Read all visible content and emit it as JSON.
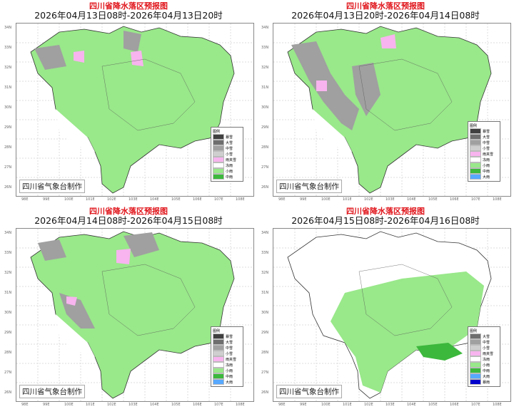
{
  "main_title": "四川省降水落区预报图",
  "credit": "四川省气象台制作",
  "lon_ticks": [
    "98E",
    "99E",
    "100E",
    "101E",
    "102E",
    "103E",
    "104E",
    "105E",
    "106E",
    "107E",
    "108E"
  ],
  "lat_ticks": [
    "34N",
    "33N",
    "32N",
    "31N",
    "30N",
    "29N",
    "28N",
    "27N",
    "26N"
  ],
  "colors": {
    "暴雪": "#404040",
    "大雪": "#6e6e6e",
    "中雪": "#a0a0a0",
    "小雪": "#cfcfcf",
    "雨夹雪": "#f7b4ee",
    "冻雨": "#ffffff",
    "小雨": "#99e88a",
    "中雨": "#3cb83c",
    "大雨": "#57a8ff",
    "暴雨": "#0000cc"
  },
  "panels": [
    {
      "title": "2026年04月13日08时-2026年04月13日20时",
      "legend_title": "图例",
      "legend": [
        "暴雪",
        "大雪",
        "中雪",
        "小雪",
        "雨夹雪",
        "冻雨",
        "小雨",
        "中雨"
      ]
    },
    {
      "title": "2026年04月13日20时-2026年04月14日08时",
      "legend_title": "图例",
      "legend": [
        "暴雪",
        "大雪",
        "中雪",
        "小雪",
        "雨夹雪",
        "冻雨",
        "小雨",
        "中雨",
        "大雨"
      ]
    },
    {
      "title": "2026年04月14日08时-2026年04月15日08时",
      "legend_title": "图例",
      "legend": [
        "暴雪",
        "大雪",
        "中雪",
        "小雪",
        "雨夹雪",
        "冻雨",
        "小雨",
        "中雨",
        "大雨"
      ]
    },
    {
      "title": "2026年04月15日08时-2026年04月16日08时",
      "legend_title": "图例",
      "legend": [
        "大雪",
        "中雪",
        "小雪",
        "雨夹雪",
        "冻雨",
        "小雨",
        "中雨",
        "大雨",
        "暴雨"
      ]
    }
  ]
}
